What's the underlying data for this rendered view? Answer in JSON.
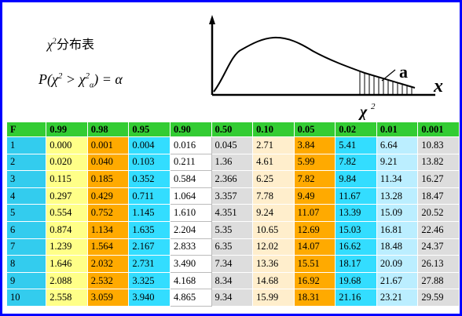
{
  "title": {
    "symbol": "χ",
    "sup": "2",
    "text": "分布表"
  },
  "formula": {
    "left": "P(χ",
    "sup1": "2",
    "mid": " > χ",
    "sup2": "2",
    "sub": "α",
    "right": ") = α"
  },
  "graph": {
    "alpha_label": "a",
    "x_label": "x",
    "chi_label": "χ",
    "chi_sup": "2"
  },
  "table": {
    "headers": [
      "F",
      "0.99",
      "0.98",
      "0.95",
      "0.90",
      "0.50",
      "0.10",
      "0.05",
      "0.02",
      "0.01",
      "0.001"
    ],
    "rows": [
      [
        "1",
        "0.000",
        "0.001",
        "0.004",
        "0.016",
        "0.045",
        "2.71",
        "3.84",
        "5.41",
        "6.64",
        "10.83"
      ],
      [
        "2",
        "0.020",
        "0.040",
        "0.103",
        "0.211",
        "1.36",
        "4.61",
        "5.99",
        "7.82",
        "9.21",
        "13.82"
      ],
      [
        "3",
        "0.115",
        "0.185",
        "0.352",
        "0.584",
        "2.366",
        "6.25",
        "7.82",
        "9.84",
        "11.34",
        "16.27"
      ],
      [
        "4",
        "0.297",
        "0.429",
        "0.711",
        "1.064",
        "3.357",
        "7.78",
        "9.49",
        "11.67",
        "13.28",
        "18.47"
      ],
      [
        "5",
        "0.554",
        "0.752",
        "1.145",
        "1.610",
        "4.351",
        "9.24",
        "11.07",
        "13.39",
        "15.09",
        "20.52"
      ],
      [
        "6",
        "0.874",
        "1.134",
        "1.635",
        "2.204",
        "5.35",
        "10.65",
        "12.69",
        "15.03",
        "16.81",
        "22.46"
      ],
      [
        "7",
        "1.239",
        "1.564",
        "2.167",
        "2.833",
        "6.35",
        "12.02",
        "14.07",
        "16.62",
        "18.48",
        "24.37"
      ],
      [
        "8",
        "1.646",
        "2.032",
        "2.731",
        "3.490",
        "7.34",
        "13.36",
        "15.51",
        "18.17",
        "20.09",
        "26.13"
      ],
      [
        "9",
        "2.088",
        "2.532",
        "3.325",
        "4.168",
        "8.34",
        "14.68",
        "16.92",
        "19.68",
        "21.67",
        "27.88"
      ],
      [
        "10",
        "2.558",
        "3.059",
        "3.940",
        "4.865",
        "9.34",
        "15.99",
        "18.31",
        "21.16",
        "23.21",
        "29.59"
      ]
    ]
  }
}
